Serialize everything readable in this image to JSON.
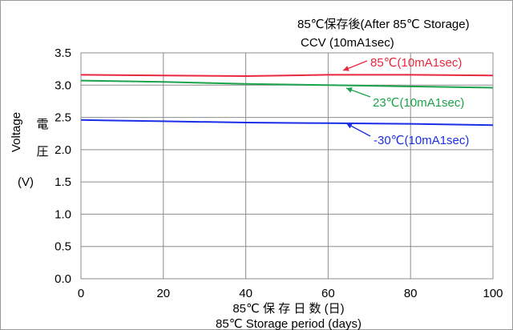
{
  "chart_data": {
    "type": "line",
    "title": "85℃保存後(After 85℃ Storage)",
    "subtitle": "CCV (10mA1sec)",
    "xlabel": "85℃ 保 存 日 数 (日)",
    "xlabel2": "85℃ Storage period (days)",
    "ylabel": "Voltage",
    "ylabel_jp": [
      "電",
      "圧"
    ],
    "ylabel_unit": "(V)",
    "xlim": [
      0,
      100
    ],
    "ylim": [
      0.0,
      3.5
    ],
    "xticks": [
      "0",
      "20",
      "40",
      "60",
      "80",
      "100"
    ],
    "yticks": [
      "0.0",
      "0.5",
      "1.0",
      "1.5",
      "2.0",
      "2.5",
      "3.0",
      "3.5"
    ],
    "grid": "vertical and horizontal",
    "x": [
      0,
      20,
      40,
      60,
      80,
      100
    ],
    "series": [
      {
        "name": "85℃(10mA1sec)",
        "color": "#e8283c",
        "values": [
          3.16,
          3.15,
          3.14,
          3.16,
          3.16,
          3.15
        ]
      },
      {
        "name": "23℃(10mA1sec)",
        "color": "#1aa34a",
        "values": [
          3.07,
          3.05,
          3.02,
          3.0,
          2.98,
          2.96
        ]
      },
      {
        "name": "-30℃(10mA1sec)",
        "color": "#1a2ee8",
        "values": [
          2.46,
          2.44,
          2.42,
          2.41,
          2.4,
          2.38
        ]
      }
    ]
  }
}
